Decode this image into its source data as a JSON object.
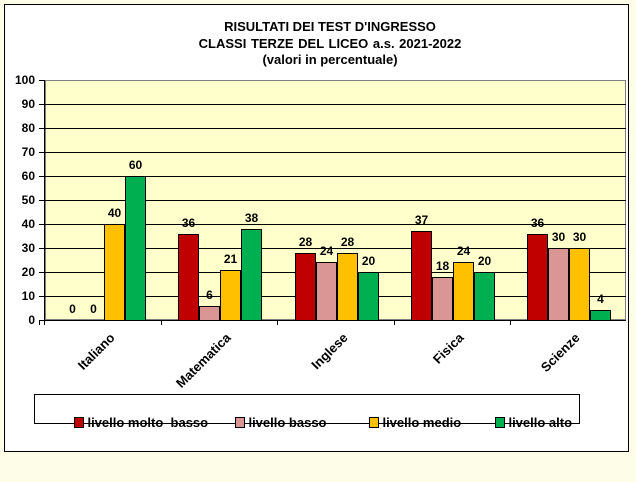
{
  "title": {
    "line1": "RISULTATI DEI TEST D'INGRESSO",
    "line2": "CLASSI  TERZE DEL LICEO     a.s. 2021-2022",
    "line3": "(valori in percentuale)"
  },
  "colors": {
    "plot_background": "#ffffcc",
    "livello_molto_basso": "#c00000",
    "livello_basso": "#d99694",
    "livello_medio": "#ffc000",
    "livello_alto": "#00b050"
  },
  "y_ticks": [
    "0",
    "10",
    "20",
    "30",
    "40",
    "50",
    "60",
    "70",
    "80",
    "90",
    "100"
  ],
  "legend": [
    {
      "label": "livello molto  basso",
      "color": "#c00000"
    },
    {
      "label": "livello basso",
      "color": "#d99694"
    },
    {
      "label": "livello medio",
      "color": "#ffc000"
    },
    {
      "label": "livello alto",
      "color": "#00b050"
    }
  ],
  "chart_data": {
    "type": "bar",
    "title": "RISULTATI DEI TEST D'INGRESSO - CLASSI TERZE DEL LICEO a.s. 2021-2022 (valori in percentuale)",
    "categories": [
      "Italiano",
      "Matematica",
      "Inglese",
      "Fisica",
      "Scienze"
    ],
    "series": [
      {
        "name": "livello molto  basso",
        "color": "#c00000",
        "values": [
          0,
          36,
          28,
          37,
          36
        ]
      },
      {
        "name": "livello basso",
        "color": "#d99694",
        "values": [
          0,
          6,
          24,
          18,
          30
        ]
      },
      {
        "name": "livello medio",
        "color": "#ffc000",
        "values": [
          40,
          21,
          28,
          24,
          30
        ]
      },
      {
        "name": "livello alto",
        "color": "#00b050",
        "values": [
          60,
          38,
          20,
          20,
          4
        ]
      }
    ],
    "xlabel": "",
    "ylabel": "",
    "ylim": [
      0,
      100
    ],
    "ytick_step": 10,
    "grid": true,
    "legend_position": "bottom",
    "data_labels": true
  }
}
